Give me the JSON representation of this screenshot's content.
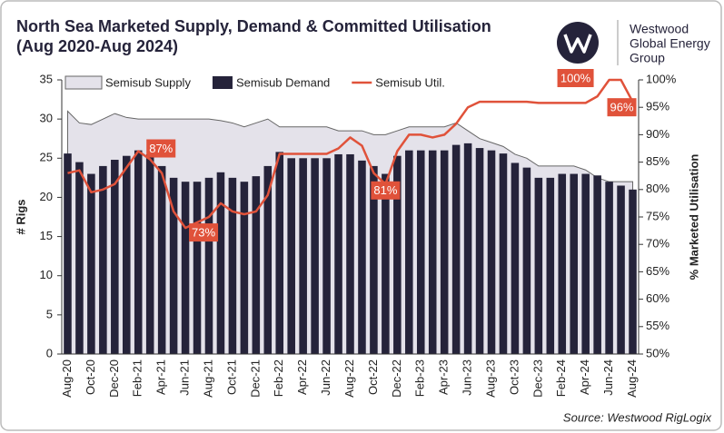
{
  "chart_data": {
    "type": "combo",
    "title": "North Sea Marketed Supply, Demand & Committed Utilisation",
    "subtitle": "(Aug 2020-Aug 2024)",
    "logo": [
      "Westwood",
      "Global Energy",
      "Group"
    ],
    "source": "Source: Westwood RigLogix",
    "y_label": "# Rigs",
    "y2_label": "% Marketed Utilisation",
    "categories": [
      "Aug-20",
      null,
      "Oct-20",
      null,
      "Dec-20",
      null,
      "Feb-21",
      null,
      "Apr-21",
      null,
      "Jun-21",
      null,
      "Aug-21",
      null,
      "Oct-21",
      null,
      "Dec-21",
      null,
      "Feb-22",
      null,
      "Apr-22",
      null,
      "Jun-22",
      null,
      "Aug-22",
      null,
      "Oct-22",
      null,
      "Dec-22",
      null,
      "Feb-23",
      null,
      "Apr-23",
      null,
      "Jun-23",
      null,
      "Aug-23",
      null,
      "Oct-23",
      null,
      "Dec-23",
      null,
      "Feb-24",
      null,
      "Apr-24",
      null,
      "Jun-24",
      null,
      "Aug-24"
    ],
    "series": [
      {
        "name": "Semisub Supply",
        "type": "area",
        "color": "#e4e2ea",
        "values": [
          31,
          29.5,
          29.3,
          30,
          30.7,
          30.2,
          30,
          30,
          30,
          30,
          30,
          30,
          30,
          29.8,
          29.5,
          29,
          29.5,
          30,
          29,
          29,
          29,
          29,
          29,
          28.5,
          28.5,
          28.5,
          28,
          28,
          28.5,
          29,
          29,
          29,
          29,
          29.5,
          28.5,
          27.5,
          27,
          26.5,
          25.5,
          25,
          24,
          24,
          24,
          24,
          23.5,
          22.5,
          22,
          22,
          22
        ]
      },
      {
        "name": "Semisub Demand",
        "type": "bar",
        "color": "#25233a",
        "values": [
          25.6,
          24.5,
          23,
          24,
          24.8,
          25.3,
          26,
          25.5,
          24,
          22.5,
          22,
          22,
          22.5,
          23.2,
          22.5,
          22,
          22.7,
          24,
          25.8,
          25,
          25,
          25,
          25,
          25.5,
          25.5,
          24.7,
          24,
          23,
          25.3,
          26,
          26,
          26,
          26,
          26.7,
          26.9,
          26.3,
          26,
          25.6,
          24.4,
          23.8,
          22.5,
          22.5,
          23,
          23,
          23,
          22.8,
          22,
          21.5,
          21
        ]
      },
      {
        "name": "Semisub Util.",
        "type": "line",
        "color": "#e0523a",
        "axis": "y2",
        "values": [
          83,
          83.5,
          79.5,
          80,
          81,
          84,
          87,
          85.5,
          83,
          76,
          73,
          74,
          75,
          77.5,
          76,
          75.5,
          76,
          79,
          86.5,
          86.5,
          86.5,
          86.5,
          86.5,
          87.5,
          89.5,
          88,
          83,
          81,
          87,
          90,
          90,
          89.5,
          90,
          92,
          95,
          96,
          96,
          96,
          96,
          96,
          95.8,
          95.8,
          95.8,
          95.8,
          95.8,
          97,
          100,
          100,
          96
        ],
        "value_labels": [
          null,
          null,
          null,
          null,
          null,
          null,
          "87%",
          null,
          null,
          null,
          "73%",
          null,
          null,
          null,
          null,
          null,
          null,
          null,
          null,
          null,
          null,
          null,
          null,
          null,
          null,
          null,
          null,
          "81%",
          null,
          null,
          null,
          null,
          null,
          null,
          null,
          null,
          null,
          null,
          null,
          null,
          null,
          null,
          null,
          null,
          null,
          null,
          null,
          "100%",
          "96%"
        ]
      }
    ],
    "ylim": [
      0,
      35
    ],
    "yticks": [
      0,
      5,
      10,
      15,
      20,
      25,
      30,
      35
    ],
    "y2lim": [
      50,
      100
    ],
    "y2ticks": [
      {
        "value": 50,
        "label": "50%"
      },
      {
        "value": 55,
        "label": "55%"
      },
      {
        "value": 60,
        "label": "60%"
      },
      {
        "value": 65,
        "label": "65%"
      },
      {
        "value": 70,
        "label": "70%"
      },
      {
        "value": 75,
        "label": "75%"
      },
      {
        "value": 80,
        "label": "80%"
      },
      {
        "value": 85,
        "label": "85%"
      },
      {
        "value": 90,
        "label": "90%"
      },
      {
        "value": 95,
        "label": "95%"
      },
      {
        "value": 100,
        "label": "100%"
      }
    ],
    "grid": false,
    "legend": "top"
  }
}
